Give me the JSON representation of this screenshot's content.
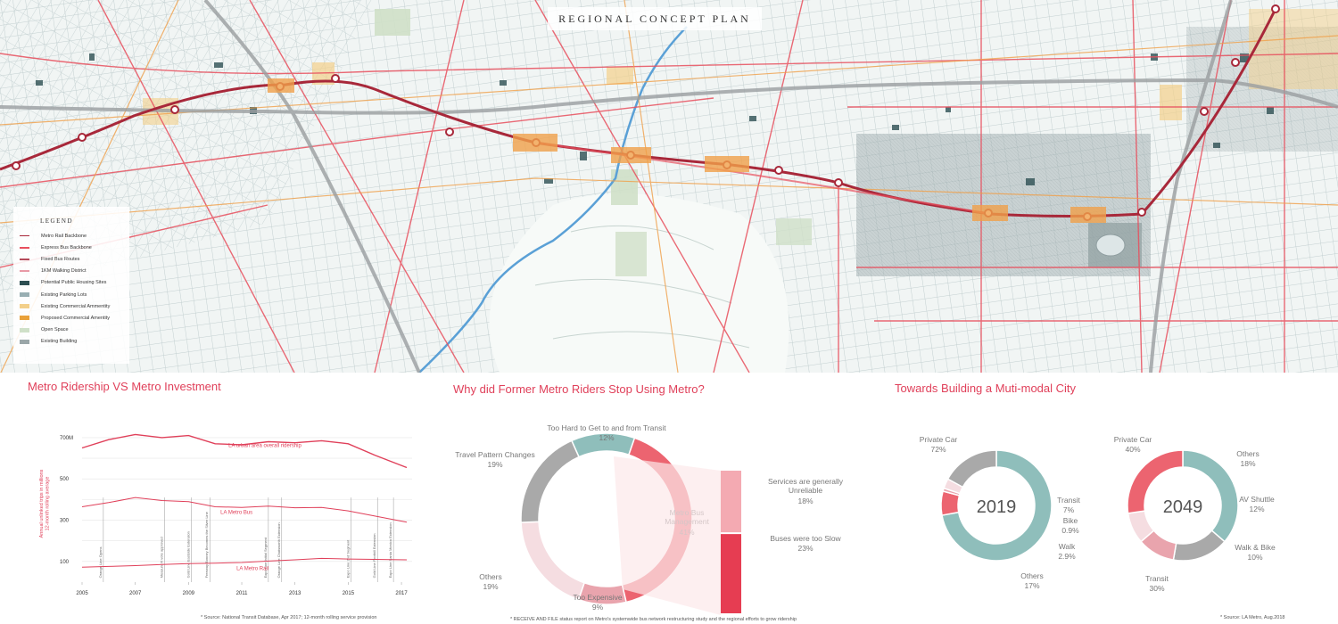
{
  "map": {
    "title": "REGIONAL CONCEPT PLAN",
    "legend_title": "LEGEND",
    "legend": [
      {
        "label": "Metro Rail Backbone",
        "color": "#a8283a"
      },
      {
        "label": "Express Bus Backbone",
        "color": "#e8505e"
      },
      {
        "label": "Fixed Bus Routes",
        "color": "#b54a5a"
      },
      {
        "label": "1KM Walking District",
        "color": "#e89aa6"
      },
      {
        "label": "Potential Public Housing Sites",
        "color": "#2d4f52"
      },
      {
        "label": "Existing Parking Lots",
        "color": "#98aeb2"
      },
      {
        "label": "Existing Commercial Ammentity",
        "color": "#f3d08a"
      },
      {
        "label": "Proposed Commercial Amentity",
        "color": "#e9a13a"
      },
      {
        "label": "Open Space",
        "color": "#cfe0c8"
      },
      {
        "label": "Existing Building",
        "color": "#9aa6a8"
      }
    ],
    "colors": {
      "rail": "#a8283a",
      "express": "#e8505e",
      "freeway": "#8b8f91",
      "river": "#5aa0d6",
      "street": "#c6d2d3"
    }
  },
  "sections": {
    "ridership_title": "Metro Ridership VS Metro Investment",
    "survey_title": "Why did Former Metro Riders Stop Using Metro?",
    "multimodal_title": "Towards Building a Muti-modal City"
  },
  "notes": {
    "ridership": "* Source: National Transit Database, Apr 2017; 12-month rolling service provision",
    "survey": "* RECEIVE AND FILE status report on Metro's systemwide bus network restructuring study and the regional efforts to grow ridership",
    "multimodal": "* Source: LA Metro, Aug.2018"
  },
  "chart_data": [
    {
      "type": "line",
      "title": "Metro Ridership VS Metro Investment",
      "xlabel": "",
      "ylabel": "Annual unlinked trips in millions\n12-month rolling average",
      "x_ticks": [
        "2005",
        "2007",
        "2009",
        "2011",
        "2013",
        "2015",
        "2017"
      ],
      "y_ticks": [
        "700M",
        "500",
        "300",
        "100"
      ],
      "xlim": [
        2005,
        2017.4
      ],
      "ylim": [
        0,
        760
      ],
      "series": [
        {
          "name": "LA urban area overall ridership",
          "x": [
            2005,
            2006,
            2007,
            2008,
            2009,
            2010,
            2011,
            2012,
            2013,
            2014,
            2015,
            2016,
            2017.2
          ],
          "y": [
            650,
            690,
            715,
            700,
            710,
            670,
            665,
            680,
            675,
            685,
            670,
            615,
            555
          ]
        },
        {
          "name": "LA Metro Bus",
          "x": [
            2005,
            2006,
            2007,
            2008,
            2009,
            2010,
            2011,
            2012,
            2013,
            2014,
            2015,
            2016,
            2017.2
          ],
          "y": [
            365,
            385,
            410,
            395,
            390,
            365,
            362,
            368,
            360,
            362,
            345,
            320,
            290
          ]
        },
        {
          "name": "LA Metro Rail",
          "x": [
            2005,
            2006,
            2007,
            2008,
            2009,
            2010,
            2011,
            2012,
            2013,
            2014,
            2015,
            2016,
            2017.2
          ],
          "y": [
            72,
            76,
            80,
            85,
            90,
            92,
            95,
            102,
            108,
            115,
            112,
            110,
            108
          ]
        }
      ],
      "events": [
        {
          "label": "Orange Line Opens",
          "x": 2005.8
        },
        {
          "label": "Measure R vote approved",
          "x": 2008.1
        },
        {
          "label": "Gold Line Eastside Extension",
          "x": 2009.1
        },
        {
          "label": "Freeway Bonney Becomes the Silver Line",
          "x": 2009.8
        },
        {
          "label": "Expo Line Initial Segment",
          "x": 2012.0
        },
        {
          "label": "Orange Line Chatsworth Extension",
          "x": 2012.5
        },
        {
          "label": "Expo Line 2nd Segment",
          "x": 2015.1
        },
        {
          "label": "Gold Line Foothill Extension",
          "x": 2016.1
        },
        {
          "label": "Expo Line Santa Monica Extension",
          "x": 2016.7
        }
      ],
      "colors": [
        "#e0405a",
        "#e0405a",
        "#e0405a"
      ]
    },
    {
      "type": "pie",
      "title": "Why did Former Metro Riders Stop Using Metro?",
      "slices": [
        {
          "label": "Too Hard to Get to and from Transit",
          "value_label": "12%",
          "value": 12,
          "color": "#8fbebb"
        },
        {
          "label": "Metro Bus\nManagement",
          "value_label": "41%",
          "value": 41,
          "color": "#ec6470"
        },
        {
          "label": "Too Expensive",
          "value_label": "9%",
          "value": 9,
          "color": "#e9a4ad"
        },
        {
          "label": "Others",
          "value_label": "19%",
          "value": 19,
          "color": "#f5dde1"
        },
        {
          "label": "Travel Pattern Changes",
          "value_label": "19%",
          "value": 19,
          "color": "#a9a9a9"
        }
      ],
      "breakdown": [
        {
          "label": "Services are generally\nUnreliable",
          "value_label": "18%",
          "value": 18,
          "color": "#f4aab2"
        },
        {
          "label": "Buses were too Slow",
          "value_label": "23%",
          "value": 23,
          "color": "#e63d52"
        }
      ]
    },
    {
      "type": "pie",
      "center_label": "2019",
      "slices": [
        {
          "label": "Private Car",
          "value_label": "72%",
          "value": 72,
          "color": "#8fbebb"
        },
        {
          "label": "Transit",
          "value_label": "7%",
          "value": 7,
          "color": "#ec6470"
        },
        {
          "label": "Bike",
          "value_label": "0.9%",
          "value": 0.9,
          "color": "#e9a4ad"
        },
        {
          "label": "Walk",
          "value_label": "2.9%",
          "value": 2.9,
          "color": "#f5dde1"
        },
        {
          "label": "Others",
          "value_label": "17%",
          "value": 17,
          "color": "#a9a9a9"
        }
      ]
    },
    {
      "type": "pie",
      "center_label": "2049",
      "slices": [
        {
          "label": "Private Car",
          "value_label": "40%",
          "value": 40,
          "color": "#8fbebb"
        },
        {
          "label": "Others",
          "value_label": "18%",
          "value": 18,
          "color": "#a9a9a9"
        },
        {
          "label": "AV Shuttle",
          "value_label": "12%",
          "value": 12,
          "color": "#e9a4ad"
        },
        {
          "label": "Walk & Bike",
          "value_label": "10%",
          "value": 10,
          "color": "#f5dde1"
        },
        {
          "label": "Transit",
          "value_label": "30%",
          "value": 30,
          "color": "#ec6470"
        }
      ]
    }
  ]
}
